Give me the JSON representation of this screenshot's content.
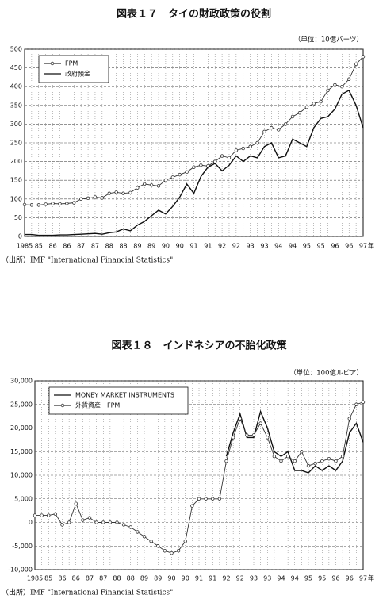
{
  "chart_data": [
    {
      "type": "line",
      "title": "図表１７　タイの財政政策の役割",
      "unit_label": "（単位：10億バーツ）",
      "source": "（出所）IMF \"International Financial Statistics\"",
      "x_label": "年",
      "categories": [
        "1985",
        null,
        "85",
        null,
        "86",
        null,
        "86",
        null,
        "87",
        null,
        "87",
        null,
        "88",
        null,
        "88",
        null,
        "89",
        null,
        "89",
        null,
        "90",
        null,
        "90",
        null,
        "91",
        null,
        "91",
        null,
        "92",
        null,
        "92",
        null,
        "93",
        null,
        "93",
        null,
        "94",
        null,
        "94",
        null,
        "95",
        null,
        "95",
        null,
        "96",
        null,
        "96",
        null,
        "97"
      ],
      "series": [
        {
          "name": "FPM",
          "color": "#333333",
          "marker": "circle",
          "values": [
            85,
            84,
            84,
            86,
            88,
            87,
            88,
            90,
            100,
            102,
            105,
            103,
            115,
            118,
            115,
            117,
            130,
            140,
            137,
            135,
            150,
            158,
            165,
            172,
            185,
            190,
            188,
            200,
            215,
            210,
            230,
            235,
            240,
            250,
            280,
            290,
            285,
            300,
            320,
            330,
            345,
            355,
            360,
            390,
            405,
            400,
            420,
            460,
            480
          ]
        },
        {
          "name": "政府預金",
          "color": "#111111",
          "marker": "none",
          "values": [
            5,
            5,
            3,
            3,
            3,
            4,
            4,
            5,
            6,
            7,
            8,
            6,
            10,
            12,
            20,
            15,
            30,
            40,
            55,
            70,
            60,
            80,
            105,
            140,
            115,
            160,
            185,
            195,
            175,
            190,
            215,
            200,
            215,
            210,
            240,
            250,
            210,
            215,
            260,
            250,
            240,
            290,
            315,
            320,
            340,
            380,
            390,
            350,
            290
          ]
        }
      ],
      "ylim": [
        0,
        500
      ],
      "yticks": [
        0,
        50,
        100,
        150,
        200,
        250,
        300,
        350,
        400,
        450,
        500
      ],
      "grid": true,
      "legend": "upper left"
    },
    {
      "type": "line",
      "title": "図表１８　インドネシアの不胎化政策",
      "unit_label": "（単位：100億ルピア）",
      "source": "（出所）IMF \"International Financial Statistics\"",
      "x_label": "年",
      "categories": [
        "1985",
        null,
        "85",
        null,
        "86",
        null,
        "86",
        null,
        "87",
        null,
        "87",
        null,
        "88",
        null,
        "88",
        null,
        "89",
        null,
        "89",
        null,
        "90",
        null,
        "90",
        null,
        "91",
        null,
        "91",
        null,
        "92",
        null,
        "92",
        null,
        "93",
        null,
        "93",
        null,
        "94",
        null,
        "94",
        null,
        "95",
        null,
        "95",
        null,
        "96",
        null,
        "96",
        null,
        "97"
      ],
      "series": [
        {
          "name": "MONEY MARKET INSTRUMENTS",
          "color": "#111111",
          "marker": "none",
          "values": [
            null,
            null,
            null,
            null,
            null,
            null,
            null,
            null,
            null,
            null,
            null,
            null,
            null,
            null,
            null,
            null,
            null,
            null,
            null,
            null,
            null,
            null,
            null,
            null,
            null,
            null,
            null,
            null,
            14000,
            19000,
            23000,
            18000,
            18000,
            23500,
            20000,
            15000,
            14000,
            15000,
            11000,
            11000,
            10500,
            12000,
            11000,
            12000,
            11000,
            13000,
            19000,
            21000,
            17000
          ]
        },
        {
          "name": "外貨資産－FPM",
          "color": "#333333",
          "marker": "circle",
          "values": [
            1500,
            1500,
            1500,
            1800,
            -500,
            0,
            4000,
            500,
            1000,
            0,
            0,
            0,
            0,
            -500,
            -1000,
            -2000,
            -3000,
            -4000,
            -5000,
            -6000,
            -6500,
            -6000,
            -4000,
            3500,
            5000,
            5000,
            5000,
            5000,
            13000,
            18000,
            22000,
            18500,
            18500,
            21000,
            18000,
            14000,
            13000,
            14000,
            13000,
            15000,
            12000,
            12500,
            13000,
            13500,
            13000,
            14000,
            22000,
            25000,
            25500
          ]
        }
      ],
      "ylim": [
        -10000,
        30000
      ],
      "yticks": [
        {
          "value": -10000,
          "label": "-10,000"
        },
        {
          "value": -5000,
          "label": "-5,000"
        },
        0,
        {
          "value": 5000,
          "label": "5,000"
        },
        {
          "value": 10000,
          "label": "10,000"
        },
        {
          "value": 15000,
          "label": "15,000"
        },
        {
          "value": 20000,
          "label": "20,000"
        },
        {
          "value": 25000,
          "label": "25,000"
        },
        {
          "value": 30000,
          "label": "30,000"
        }
      ],
      "grid": true,
      "legend": "upper left"
    }
  ]
}
